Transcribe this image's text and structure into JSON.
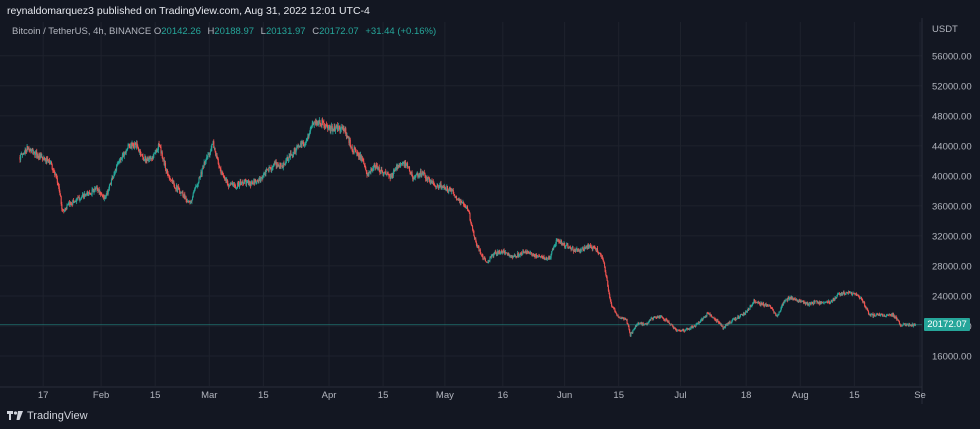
{
  "header": {
    "publisher_text": "reynaldomarquez3 published on TradingView.com, Aug 31, 2022 12:01 UTC-4"
  },
  "legend": {
    "symbol": "Bitcoin / TetherUS, 4h, BINANCE",
    "o_label": "O",
    "o_value": "20142.26",
    "h_label": "H",
    "h_value": "20188.97",
    "l_label": "L",
    "l_value": "20131.97",
    "c_label": "C",
    "c_value": "20172.07",
    "change": "+31.44 (+0.16%)"
  },
  "price_axis": {
    "currency": "USDT"
  },
  "last_price_tag": "20172.07",
  "footer": {
    "logo_text": "TradingView"
  },
  "colors": {
    "background": "#131722",
    "up": "#26a69a",
    "down": "#ef5350",
    "grid": "#1e222d",
    "text": "#b2b5be"
  },
  "chart_data": {
    "type": "candlestick",
    "y_ticks": [
      16000,
      20000,
      24000,
      28000,
      32000,
      36000,
      40000,
      44000,
      48000,
      52000,
      56000
    ],
    "y_tick_labels": [
      "16000.00",
      "20000.00",
      "24000.00",
      "28000.00",
      "32000.00",
      "36000.00",
      "40000.00",
      "44000.00",
      "48000.00",
      "52000.00",
      "56000.00"
    ],
    "ylim": [
      12000,
      60500
    ],
    "x_ticks": [
      {
        "date": "2022-01-17",
        "label": "17"
      },
      {
        "date": "2022-02-01",
        "label": "Feb"
      },
      {
        "date": "2022-02-15",
        "label": "15"
      },
      {
        "date": "2022-03-01",
        "label": "Mar"
      },
      {
        "date": "2022-03-15",
        "label": "15"
      },
      {
        "date": "2022-04-01",
        "label": "Apr"
      },
      {
        "date": "2022-04-15",
        "label": "15"
      },
      {
        "date": "2022-05-01",
        "label": "May"
      },
      {
        "date": "2022-05-16",
        "label": "16"
      },
      {
        "date": "2022-06-01",
        "label": "Jun"
      },
      {
        "date": "2022-06-15",
        "label": "15"
      },
      {
        "date": "2022-07-01",
        "label": "Jul"
      },
      {
        "date": "2022-07-18",
        "label": "18"
      },
      {
        "date": "2022-08-01",
        "label": "Aug"
      },
      {
        "date": "2022-08-15",
        "label": "15"
      },
      {
        "date": "2022-09-01",
        "label": "Se"
      }
    ],
    "xlim": [
      "2022-01-11",
      "2022-09-01"
    ],
    "series": [
      {
        "values": [
          [
            "2022-01-11",
            42500
          ],
          [
            "2022-01-13",
            43700
          ],
          [
            "2022-01-15",
            42900
          ],
          [
            "2022-01-17",
            42200
          ],
          [
            "2022-01-19",
            41700
          ],
          [
            "2022-01-21",
            38600
          ],
          [
            "2022-01-22",
            35300
          ],
          [
            "2022-01-24",
            36300
          ],
          [
            "2022-01-26",
            36900
          ],
          [
            "2022-01-28",
            37400
          ],
          [
            "2022-01-31",
            38300
          ],
          [
            "2022-02-02",
            36900
          ],
          [
            "2022-02-04",
            39900
          ],
          [
            "2022-02-06",
            42300
          ],
          [
            "2022-02-08",
            43900
          ],
          [
            "2022-02-10",
            44100
          ],
          [
            "2022-02-12",
            42300
          ],
          [
            "2022-02-14",
            42100
          ],
          [
            "2022-02-16",
            44100
          ],
          [
            "2022-02-18",
            40500
          ],
          [
            "2022-02-20",
            38700
          ],
          [
            "2022-02-22",
            37700
          ],
          [
            "2022-02-24",
            36200
          ],
          [
            "2022-02-26",
            39200
          ],
          [
            "2022-02-28",
            41900
          ],
          [
            "2022-03-02",
            44300
          ],
          [
            "2022-03-04",
            40300
          ],
          [
            "2022-03-06",
            38900
          ],
          [
            "2022-03-08",
            38700
          ],
          [
            "2022-03-10",
            39200
          ],
          [
            "2022-03-12",
            38900
          ],
          [
            "2022-03-14",
            39400
          ],
          [
            "2022-03-16",
            40700
          ],
          [
            "2022-03-18",
            41500
          ],
          [
            "2022-03-20",
            41300
          ],
          [
            "2022-03-22",
            42700
          ],
          [
            "2022-03-24",
            43900
          ],
          [
            "2022-03-26",
            44500
          ],
          [
            "2022-03-28",
            47200
          ],
          [
            "2022-03-30",
            47100
          ],
          [
            "2022-04-01",
            46200
          ],
          [
            "2022-04-03",
            46400
          ],
          [
            "2022-04-05",
            46200
          ],
          [
            "2022-04-07",
            43600
          ],
          [
            "2022-04-09",
            42700
          ],
          [
            "2022-04-11",
            40100
          ],
          [
            "2022-04-13",
            41300
          ],
          [
            "2022-04-15",
            40400
          ],
          [
            "2022-04-17",
            39800
          ],
          [
            "2022-04-19",
            41600
          ],
          [
            "2022-04-21",
            41500
          ],
          [
            "2022-04-23",
            39600
          ],
          [
            "2022-04-25",
            40500
          ],
          [
            "2022-04-27",
            39300
          ],
          [
            "2022-04-29",
            38700
          ],
          [
            "2022-05-01",
            38500
          ],
          [
            "2022-05-03",
            37800
          ],
          [
            "2022-05-05",
            36500
          ],
          [
            "2022-05-07",
            35500
          ],
          [
            "2022-05-09",
            31000
          ],
          [
            "2022-05-11",
            29000
          ],
          [
            "2022-05-12",
            28500
          ],
          [
            "2022-05-14",
            29800
          ],
          [
            "2022-05-16",
            29900
          ],
          [
            "2022-05-18",
            29300
          ],
          [
            "2022-05-20",
            29500
          ],
          [
            "2022-05-22",
            30000
          ],
          [
            "2022-05-24",
            29400
          ],
          [
            "2022-05-26",
            29200
          ],
          [
            "2022-05-28",
            28900
          ],
          [
            "2022-05-30",
            31500
          ],
          [
            "2022-06-01",
            30800
          ],
          [
            "2022-06-03",
            30200
          ],
          [
            "2022-06-05",
            30000
          ],
          [
            "2022-06-07",
            30600
          ],
          [
            "2022-06-09",
            30400
          ],
          [
            "2022-06-11",
            28800
          ],
          [
            "2022-06-13",
            22800
          ],
          [
            "2022-06-15",
            21200
          ],
          [
            "2022-06-17",
            20800
          ],
          [
            "2022-06-18",
            18800
          ],
          [
            "2022-06-20",
            20400
          ],
          [
            "2022-06-22",
            20200
          ],
          [
            "2022-06-24",
            21100
          ],
          [
            "2022-06-26",
            21300
          ],
          [
            "2022-06-28",
            20400
          ],
          [
            "2022-06-30",
            19300
          ],
          [
            "2022-07-02",
            19400
          ],
          [
            "2022-07-04",
            19800
          ],
          [
            "2022-07-06",
            20500
          ],
          [
            "2022-07-08",
            21700
          ],
          [
            "2022-07-10",
            20900
          ],
          [
            "2022-07-12",
            19800
          ],
          [
            "2022-07-14",
            20600
          ],
          [
            "2022-07-16",
            21200
          ],
          [
            "2022-07-18",
            21800
          ],
          [
            "2022-07-20",
            23400
          ],
          [
            "2022-07-22",
            22900
          ],
          [
            "2022-07-24",
            22600
          ],
          [
            "2022-07-26",
            21300
          ],
          [
            "2022-07-28",
            23500
          ],
          [
            "2022-07-30",
            23700
          ],
          [
            "2022-08-01",
            23300
          ],
          [
            "2022-08-03",
            22900
          ],
          [
            "2022-08-05",
            23200
          ],
          [
            "2022-08-07",
            23100
          ],
          [
            "2022-08-09",
            23200
          ],
          [
            "2022-08-11",
            24200
          ],
          [
            "2022-08-13",
            24400
          ],
          [
            "2022-08-15",
            24300
          ],
          [
            "2022-08-17",
            23500
          ],
          [
            "2022-08-19",
            21400
          ],
          [
            "2022-08-21",
            21500
          ],
          [
            "2022-08-23",
            21400
          ],
          [
            "2022-08-25",
            21500
          ],
          [
            "2022-08-27",
            20200
          ],
          [
            "2022-08-29",
            20100
          ],
          [
            "2022-08-31",
            20172
          ]
        ]
      }
    ]
  }
}
